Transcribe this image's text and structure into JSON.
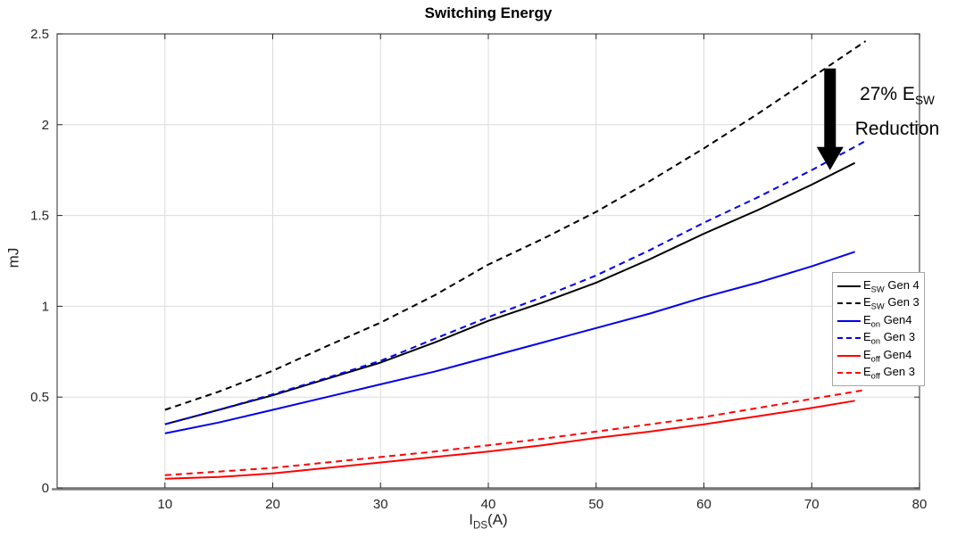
{
  "chart_data": {
    "type": "line",
    "title": "Switching Energy",
    "xlabel": {
      "pre": "I",
      "sub": "DS",
      "post": "(A)"
    },
    "ylabel": "mJ",
    "xlim": [
      0,
      80
    ],
    "ylim": [
      0,
      2.5
    ],
    "xticks": [
      10,
      20,
      30,
      40,
      50,
      60,
      70,
      80
    ],
    "yticks": [
      0,
      0.5,
      1,
      1.5,
      2,
      2.5
    ],
    "ytick_labels": [
      "0",
      "0.5",
      "1",
      "1.5",
      "2",
      "2.5"
    ],
    "grid": true,
    "legend_position": "right-middle",
    "colors": {
      "axis": "#4d4d4d",
      "axis_bottom": "#808080",
      "grid": "#dcdcdc",
      "tick_label": "#262626",
      "black": "#000000",
      "blue": "#0000ee",
      "red": "#ff0000"
    },
    "series": [
      {
        "name": "E_SW Gen 4",
        "label": {
          "pre": "E",
          "sub": "SW",
          "post": " Gen 4"
        },
        "color": "#000000",
        "style": "solid",
        "x": [
          10,
          15,
          20,
          25,
          30,
          35,
          40,
          45,
          50,
          55,
          60,
          65,
          70,
          74
        ],
        "y": [
          0.35,
          0.43,
          0.51,
          0.6,
          0.69,
          0.8,
          0.92,
          1.02,
          1.13,
          1.26,
          1.4,
          1.53,
          1.67,
          1.79
        ]
      },
      {
        "name": "E_SW Gen 3",
        "label": {
          "pre": "E",
          "sub": "SW",
          "post": " Gen 3"
        },
        "color": "#000000",
        "style": "dashed",
        "x": [
          10,
          15,
          20,
          25,
          30,
          35,
          40,
          45,
          50,
          55,
          60,
          65,
          70,
          75
        ],
        "y": [
          0.43,
          0.53,
          0.645,
          0.78,
          0.91,
          1.06,
          1.23,
          1.37,
          1.52,
          1.69,
          1.87,
          2.06,
          2.26,
          2.46
        ]
      },
      {
        "name": "E_on Gen4",
        "label": {
          "pre": "E",
          "sub": "on",
          "post": " Gen4"
        },
        "color": "#0000ee",
        "style": "solid",
        "x": [
          10,
          15,
          20,
          25,
          30,
          35,
          40,
          45,
          50,
          55,
          60,
          65,
          70,
          74
        ],
        "y": [
          0.3,
          0.36,
          0.43,
          0.5,
          0.57,
          0.64,
          0.72,
          0.8,
          0.88,
          0.96,
          1.05,
          1.13,
          1.22,
          1.3
        ]
      },
      {
        "name": "E_on Gen 3",
        "label": {
          "pre": "E",
          "sub": "on",
          "post": " Gen 3"
        },
        "color": "#0000ee",
        "style": "dashed",
        "x": [
          10,
          15,
          20,
          25,
          30,
          35,
          40,
          45,
          50,
          55,
          60,
          65,
          70,
          75
        ],
        "y": [
          0.35,
          0.43,
          0.515,
          0.605,
          0.7,
          0.82,
          0.94,
          1.05,
          1.17,
          1.31,
          1.46,
          1.6,
          1.75,
          1.91
        ]
      },
      {
        "name": "E_off Gen4",
        "label": {
          "pre": "E",
          "sub": "off",
          "post": " Gen4"
        },
        "color": "#ff0000",
        "style": "solid",
        "x": [
          10,
          15,
          20,
          25,
          30,
          35,
          40,
          45,
          50,
          55,
          60,
          65,
          70,
          74
        ],
        "y": [
          0.05,
          0.06,
          0.08,
          0.11,
          0.14,
          0.17,
          0.2,
          0.235,
          0.275,
          0.31,
          0.35,
          0.395,
          0.44,
          0.48
        ]
      },
      {
        "name": "E_off Gen 3",
        "label": {
          "pre": "E",
          "sub": "off",
          "post": " Gen 3"
        },
        "color": "#ff0000",
        "style": "dashed",
        "x": [
          10,
          15,
          20,
          25,
          30,
          35,
          40,
          45,
          50,
          55,
          60,
          65,
          70,
          75
        ],
        "y": [
          0.07,
          0.09,
          0.11,
          0.14,
          0.17,
          0.2,
          0.235,
          0.27,
          0.31,
          0.35,
          0.39,
          0.44,
          0.49,
          0.54
        ]
      }
    ],
    "annotation": {
      "line1_pre": "27% E",
      "line1_sub": "SW",
      "line2": "Reduction",
      "arrow": {
        "x": 71.7,
        "y_from": 2.31,
        "y_to": 1.75
      }
    }
  }
}
